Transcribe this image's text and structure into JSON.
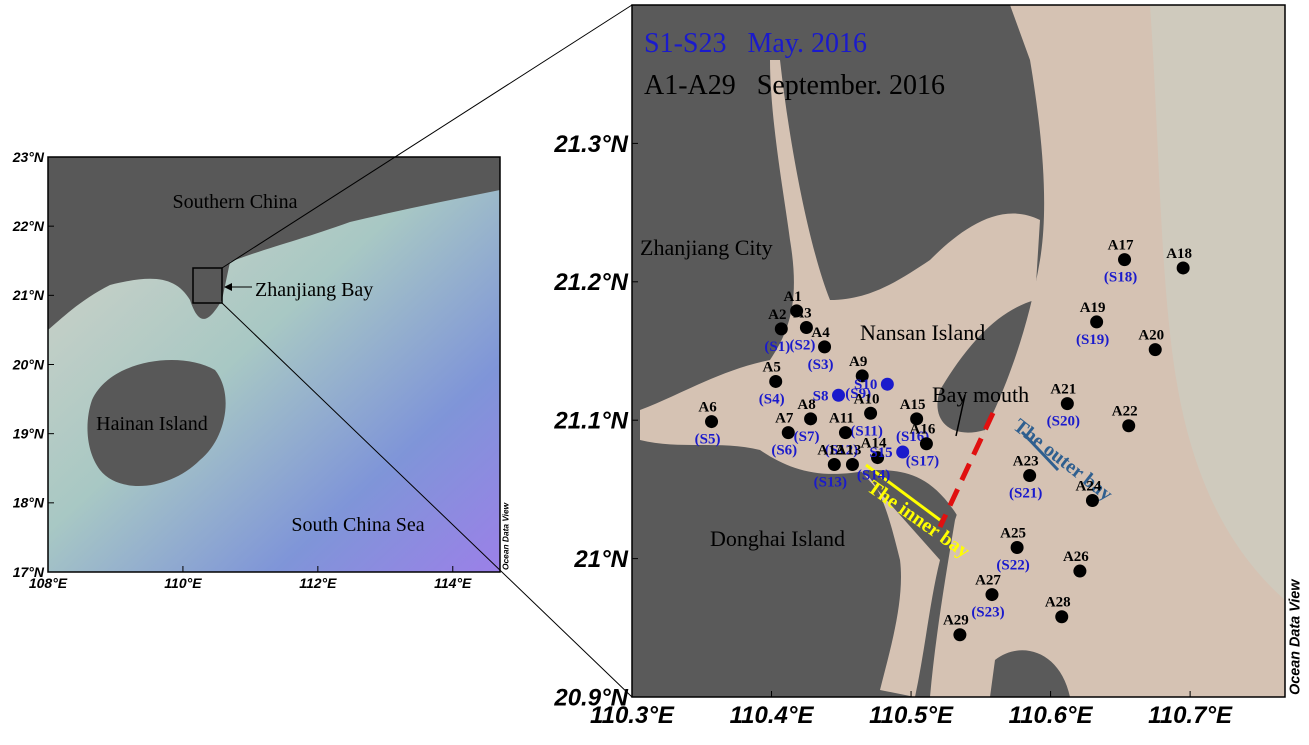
{
  "left_map": {
    "xlim": [
      108,
      114.7
    ],
    "ylim": [
      17,
      23
    ],
    "xticks": [
      {
        "value": 108,
        "label": "108°E"
      },
      {
        "value": 110,
        "label": "110°E"
      },
      {
        "value": 112,
        "label": "112°E"
      },
      {
        "value": 114,
        "label": "114°E"
      }
    ],
    "yticks": [
      {
        "value": 17,
        "label": "17°N"
      },
      {
        "value": 18,
        "label": "18°N"
      },
      {
        "value": 19,
        "label": "19°N"
      },
      {
        "value": 20,
        "label": "20°N"
      },
      {
        "value": 21,
        "label": "21°N"
      },
      {
        "value": 22,
        "label": "22°N"
      },
      {
        "value": 23,
        "label": "23°N"
      }
    ],
    "places": [
      "Southern China",
      "Zhanjiang Bay",
      "Hainan Island",
      "South China Sea"
    ],
    "credit": "Ocean Data View"
  },
  "right_map": {
    "xlim": [
      110.3,
      110.768
    ],
    "ylim": [
      20.9,
      21.4
    ],
    "xticks": [
      {
        "value": 110.3,
        "label": "110.3°E"
      },
      {
        "value": 110.4,
        "label": "110.4°E"
      },
      {
        "value": 110.5,
        "label": "110.5°E"
      },
      {
        "value": 110.6,
        "label": "110.6°E"
      },
      {
        "value": 110.7,
        "label": "110.7°E"
      }
    ],
    "yticks": [
      {
        "value": 20.9,
        "label": "20.9°N"
      },
      {
        "value": 21,
        "label": "21°N"
      },
      {
        "value": 21.1,
        "label": "21.1°N"
      },
      {
        "value": 21.2,
        "label": "21.2°N"
      },
      {
        "value": 21.3,
        "label": "21.3°N"
      }
    ],
    "legend_blue": "S1-S23   May. 2016",
    "legend_black": "A1-A29   September. 2016",
    "places": [
      "Zhanjiang City",
      "Nansan Island",
      "Donghai Island",
      "Bay mouth",
      "The outer bay",
      "The inner bay"
    ],
    "credit": "Ocean Data View",
    "stations": [
      {
        "label": "A1",
        "lon": 110.418,
        "lat": 21.179
      },
      {
        "label": "A2",
        "sub": "(S1)",
        "lon": 110.407,
        "lat": 21.166
      },
      {
        "label": "A3",
        "sub": "(S2)",
        "lon": 110.425,
        "lat": 21.167
      },
      {
        "label": "A4",
        "sub": "(S3)",
        "lon": 110.438,
        "lat": 21.153
      },
      {
        "label": "A5",
        "sub": "(S4)",
        "lon": 110.403,
        "lat": 21.128
      },
      {
        "label": "A6",
        "sub": "(S5)",
        "lon": 110.357,
        "lat": 21.099
      },
      {
        "label": "A7",
        "sub": "(S6)",
        "lon": 110.412,
        "lat": 21.091
      },
      {
        "label": "A8",
        "sub": "(S7)",
        "lon": 110.428,
        "lat": 21.101
      },
      {
        "label": "A9",
        "sub": "(S9)",
        "lon": 110.465,
        "lat": 21.132
      },
      {
        "label": "A10",
        "sub": "(S11)",
        "lon": 110.471,
        "lat": 21.105
      },
      {
        "label": "A11",
        "sub": "(S12)",
        "lon": 110.453,
        "lat": 21.091
      },
      {
        "label": "A12",
        "sub": "(S13)",
        "lon": 110.445,
        "lat": 21.068
      },
      {
        "label": "A13",
        "lon": 110.458,
        "lat": 21.068
      },
      {
        "label": "A14",
        "sub": "(S14)",
        "lon": 110.476,
        "lat": 21.073
      },
      {
        "label": "A15",
        "sub": "(S16)",
        "lon": 110.504,
        "lat": 21.101
      },
      {
        "label": "A16",
        "sub": "(S17)",
        "lon": 110.511,
        "lat": 21.083
      },
      {
        "label": "A17",
        "sub": "(S18)",
        "lon": 110.653,
        "lat": 21.216
      },
      {
        "label": "A18",
        "lon": 110.695,
        "lat": 21.21
      },
      {
        "label": "A19",
        "sub": "(S19)",
        "lon": 110.633,
        "lat": 21.171
      },
      {
        "label": "A20",
        "lon": 110.675,
        "lat": 21.151
      },
      {
        "label": "A21",
        "sub": "(S20)",
        "lon": 110.612,
        "lat": 21.112
      },
      {
        "label": "A22",
        "lon": 110.656,
        "lat": 21.096
      },
      {
        "label": "A23",
        "sub": "(S21)",
        "lon": 110.585,
        "lat": 21.06
      },
      {
        "label": "A24",
        "lon": 110.63,
        "lat": 21.042
      },
      {
        "label": "A25",
        "sub": "(S22)",
        "lon": 110.576,
        "lat": 21.008
      },
      {
        "label": "A26",
        "lon": 110.621,
        "lat": 20.991
      },
      {
        "label": "A27",
        "sub": "(S23)",
        "lon": 110.558,
        "lat": 20.974
      },
      {
        "label": "A28",
        "lon": 110.608,
        "lat": 20.958
      },
      {
        "label": "A29",
        "lon": 110.535,
        "lat": 20.945
      }
    ],
    "blue_stations": [
      {
        "label": "S8",
        "lon": 110.448,
        "lat": 21.118
      },
      {
        "label": "S10",
        "lon": 110.483,
        "lat": 21.126
      },
      {
        "label": "S15",
        "lon": 110.494,
        "lat": 21.077
      }
    ]
  }
}
